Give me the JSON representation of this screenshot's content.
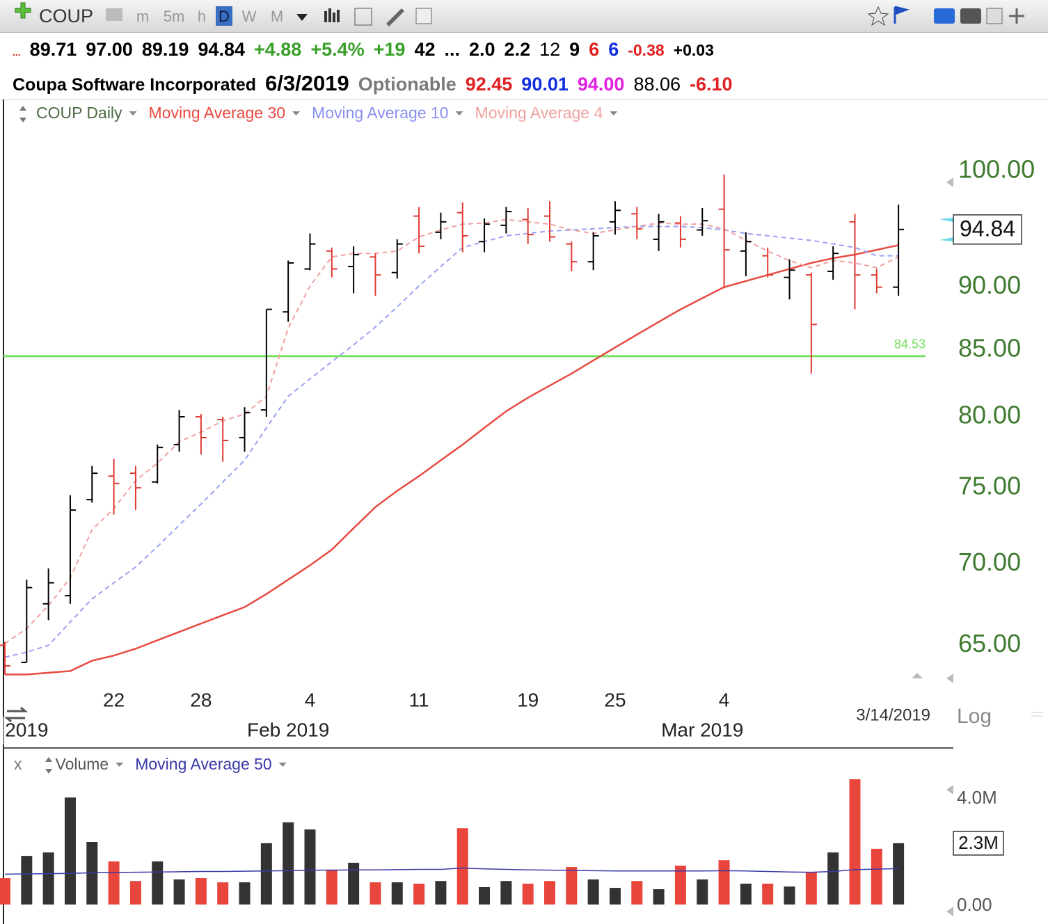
{
  "toolbar": {
    "symbol": "COUP",
    "intervals": [
      "m",
      "5m",
      "h",
      "D",
      "W",
      "M"
    ],
    "active": "D"
  },
  "quote": {
    "row1": [
      {
        "text": "...",
        "color": "#d42020"
      },
      {
        "text": "89.71",
        "color": "#000000"
      },
      {
        "text": "97.00",
        "color": "#000000"
      },
      {
        "text": "89.19",
        "color": "#000000"
      },
      {
        "text": "94.84",
        "color": "#000000"
      },
      {
        "text": "+4.88",
        "color": "#3aa02a"
      },
      {
        "text": "+5.4%",
        "color": "#3aa02a"
      },
      {
        "text": "+19",
        "color": "#3aa02a"
      },
      {
        "text": "42",
        "color": "#000000"
      },
      {
        "text": "...",
        "color": "#000000"
      },
      {
        "text": "2.0",
        "color": "#000000"
      },
      {
        "text": "2.2",
        "color": "#000000"
      },
      {
        "text": "12",
        "color": "#000000"
      },
      {
        "text": "9",
        "color": "#000000"
      },
      {
        "text": "6",
        "color": "#e02020"
      },
      {
        "text": "6",
        "color": "#1030e0"
      },
      {
        "text": "-0.38",
        "color": "#e02020"
      },
      {
        "text": "+0.03",
        "color": "#000000"
      }
    ],
    "row2": [
      {
        "text": "Coupa Software Incorporated",
        "color": "#000000"
      },
      {
        "text": "6/3/2019",
        "color": "#000000"
      },
      {
        "text": "Optionable",
        "color": "#7a7a7a"
      },
      {
        "text": "92.45",
        "color": "#e02020"
      },
      {
        "text": "90.01",
        "color": "#1030e0"
      },
      {
        "text": "94.00",
        "color": "#e020e0"
      },
      {
        "text": "88.06",
        "color": "#000000"
      },
      {
        "text": "-6.10",
        "color": "#e02020"
      }
    ]
  },
  "chart_data": {
    "type": "ohlc",
    "legend": [
      {
        "text": "COUP Daily",
        "color": "#4d6b45"
      },
      {
        "text": "Moving Average 30",
        "color": "#e84a40"
      },
      {
        "text": "Moving Average 10",
        "color": "#8a90f0"
      },
      {
        "text": "Moving Average 4",
        "color": "#f0a0a0"
      }
    ],
    "categories": [
      null,
      null,
      null,
      null,
      null,
      "22",
      null,
      null,
      null,
      "28",
      null,
      null,
      null,
      null,
      "4",
      null,
      null,
      null,
      null,
      "11",
      null,
      null,
      null,
      null,
      "19",
      null,
      null,
      null,
      "25",
      null,
      null,
      null,
      null,
      "4",
      null,
      null,
      null,
      null,
      null,
      null,
      null,
      null
    ],
    "months": [
      null,
      "2019",
      null,
      null,
      null,
      null,
      null,
      null,
      null,
      null,
      null,
      null,
      null,
      "Feb 2019",
      null,
      null,
      null,
      null,
      null,
      null,
      null,
      null,
      null,
      null,
      null,
      null,
      null,
      null,
      null,
      null,
      null,
      null,
      "Mar 2019",
      null,
      null,
      null,
      null,
      null,
      null,
      null,
      null,
      null
    ],
    "open": [
      65.0,
      64.0,
      67.5,
      68.0,
      74.2,
      75.8,
      76.0,
      75.4,
      78.0,
      80.0,
      79.8,
      78.5,
      80.5,
      88.0,
      91.5,
      93.0,
      91.7,
      92.5,
      91.2,
      96.0,
      94.6,
      96.3,
      93.8,
      95.2,
      95.7,
      96.0,
      93.6,
      92.1,
      95.5,
      96.2,
      94.0,
      95.4,
      94.8,
      96.6,
      93.0,
      92.6,
      90.8,
      91.0,
      91.3,
      95.5,
      91.0,
      90.0
    ],
    "high": [
      65.2,
      69.0,
      69.7,
      74.5,
      76.5,
      77.0,
      76.5,
      78.0,
      80.5,
      80.2,
      80.0,
      80.7,
      88.2,
      92.2,
      94.5,
      93.3,
      93.4,
      92.8,
      94.0,
      96.8,
      96.3,
      97.2,
      95.8,
      96.8,
      96.7,
      97.3,
      93.8,
      94.6,
      97.3,
      96.8,
      96.2,
      96.0,
      96.7,
      99.7,
      94.6,
      93.3,
      92.3,
      91.2,
      93.4,
      96.2,
      91.5,
      97.0
    ],
    "low": [
      63.3,
      64.0,
      66.5,
      67.5,
      74.0,
      73.2,
      73.5,
      75.3,
      77.5,
      77.3,
      76.8,
      77.5,
      80.0,
      87.2,
      91.4,
      90.8,
      89.5,
      89.3,
      90.7,
      92.8,
      94.0,
      92.9,
      92.9,
      94.5,
      93.6,
      93.8,
      91.3,
      91.4,
      94.4,
      94.0,
      93.0,
      93.3,
      94.3,
      89.9,
      90.9,
      90.8,
      89.0,
      83.2,
      90.6,
      88.2,
      89.5,
      89.3
    ],
    "close": [
      63.8,
      68.5,
      68.8,
      73.5,
      76.0,
      75.3,
      75.0,
      77.8,
      80.0,
      78.5,
      78.3,
      80.3,
      88.2,
      92.0,
      93.6,
      91.5,
      92.7,
      91.0,
      93.6,
      93.4,
      95.5,
      94.3,
      95.3,
      96.4,
      94.4,
      94.2,
      92.1,
      94.3,
      96.5,
      94.9,
      95.5,
      94.0,
      95.6,
      93.1,
      93.8,
      91.0,
      91.4,
      87.0,
      92.8,
      91.0,
      90.0,
      94.84
    ],
    "up_color": "#000000",
    "down_color": "#e03a34",
    "series": [
      {
        "name": "Moving Average 30",
        "color": "#e84a40",
        "dashed": false,
        "values": [
          63.3,
          63.3,
          63.4,
          63.5,
          64.1,
          64.4,
          64.8,
          65.3,
          65.8,
          66.3,
          66.8,
          67.3,
          68.1,
          69.0,
          69.9,
          70.9,
          72.3,
          73.7,
          74.8,
          75.8,
          76.9,
          78.0,
          79.2,
          80.4,
          81.4,
          82.3,
          83.2,
          84.2,
          85.2,
          86.2,
          87.2,
          88.2,
          89.1,
          90.0,
          90.5,
          91.0,
          91.5,
          92.0,
          92.4,
          92.7,
          93.1,
          93.5
        ]
      },
      {
        "name": "Moving Average 10",
        "color": "#9aa0f0",
        "dashed": true,
        "values": [
          64.3,
          64.6,
          65.0,
          66.4,
          67.8,
          68.8,
          69.8,
          71.1,
          72.5,
          73.9,
          75.4,
          76.9,
          79.2,
          81.5,
          82.8,
          84.1,
          85.4,
          86.8,
          88.4,
          90.1,
          91.7,
          93.3,
          93.8,
          94.3,
          94.5,
          94.7,
          94.8,
          94.9,
          95.0,
          95.1,
          95.1,
          95.1,
          95.0,
          94.8,
          94.5,
          94.3,
          94.1,
          93.9,
          93.6,
          93.3,
          92.6,
          92.6
        ]
      },
      {
        "name": "Moving Average 4",
        "color": "#f0a0a0",
        "dashed": true,
        "values": [
          65.1,
          66.0,
          67.4,
          69.1,
          72.2,
          73.6,
          75.5,
          76.7,
          78.2,
          78.9,
          79.7,
          80.2,
          81.5,
          86.7,
          90.1,
          92.5,
          92.8,
          92.8,
          93.0,
          94.2,
          94.8,
          95.3,
          95.4,
          95.7,
          95.5,
          95.3,
          94.8,
          94.5,
          94.8,
          95.1,
          95.4,
          95.3,
          95.3,
          94.9,
          93.9,
          93.0,
          92.2,
          91.6,
          92.2,
          92.0,
          91.6,
          92.5
        ]
      }
    ],
    "ylim": [
      62.68,
      102.95
    ],
    "log": true,
    "yticks": [
      {
        "value": 100,
        "label": "100.00"
      },
      {
        "value": 90,
        "label": "90.00"
      },
      {
        "value": 85,
        "label": "85.00"
      },
      {
        "value": 80,
        "label": "80.00"
      },
      {
        "value": 75,
        "label": "75.00"
      },
      {
        "value": 70,
        "label": "70.00"
      },
      {
        "value": 65,
        "label": "65.00"
      }
    ],
    "hline": {
      "value": 84.53,
      "color": "#77e060"
    },
    "date_label": "3/14/2019",
    "scale_label": "Log"
  },
  "volume_data": {
    "type": "bar",
    "legend": [
      {
        "text": "x",
        "color": "#777777"
      },
      {
        "text": "Volume",
        "color": "#555555"
      },
      {
        "text": "Moving Average 50",
        "color": "#3a3aa8"
      }
    ],
    "values": [
      1.0,
      1.84,
      1.97,
      4.05,
      2.37,
      1.63,
      0.89,
      1.63,
      0.95,
      1.0,
      0.84,
      0.84,
      2.32,
      3.11,
      2.84,
      1.32,
      1.58,
      0.84,
      0.84,
      0.79,
      0.89,
      2.89,
      0.66,
      0.89,
      0.79,
      0.89,
      1.42,
      0.95,
      0.63,
      0.89,
      0.58,
      1.47,
      0.95,
      1.68,
      0.79,
      0.79,
      0.68,
      1.21,
      1.97,
      4.74,
      2.11,
      2.32
    ],
    "ma": {
      "name": "Moving Average 50",
      "color": "#3a3aa8",
      "values": [
        1.15,
        1.16,
        1.17,
        1.18,
        1.2,
        1.21,
        1.22,
        1.23,
        1.24,
        1.25,
        1.25,
        1.26,
        1.27,
        1.28,
        1.3,
        1.3,
        1.31,
        1.31,
        1.32,
        1.33,
        1.33,
        1.38,
        1.35,
        1.33,
        1.31,
        1.3,
        1.29,
        1.28,
        1.27,
        1.27,
        1.27,
        1.27,
        1.27,
        1.28,
        1.27,
        1.25,
        1.23,
        1.22,
        1.25,
        1.32,
        1.34,
        1.36
      ]
    },
    "up_color": "#333333",
    "down_color": "#e8453c",
    "ylim": [
      0,
      5.53
    ],
    "yticks": [
      {
        "value": 4,
        "label": "4.0M"
      },
      {
        "value": 0,
        "label": "0.00"
      }
    ],
    "last_value_label": "2.3M"
  }
}
